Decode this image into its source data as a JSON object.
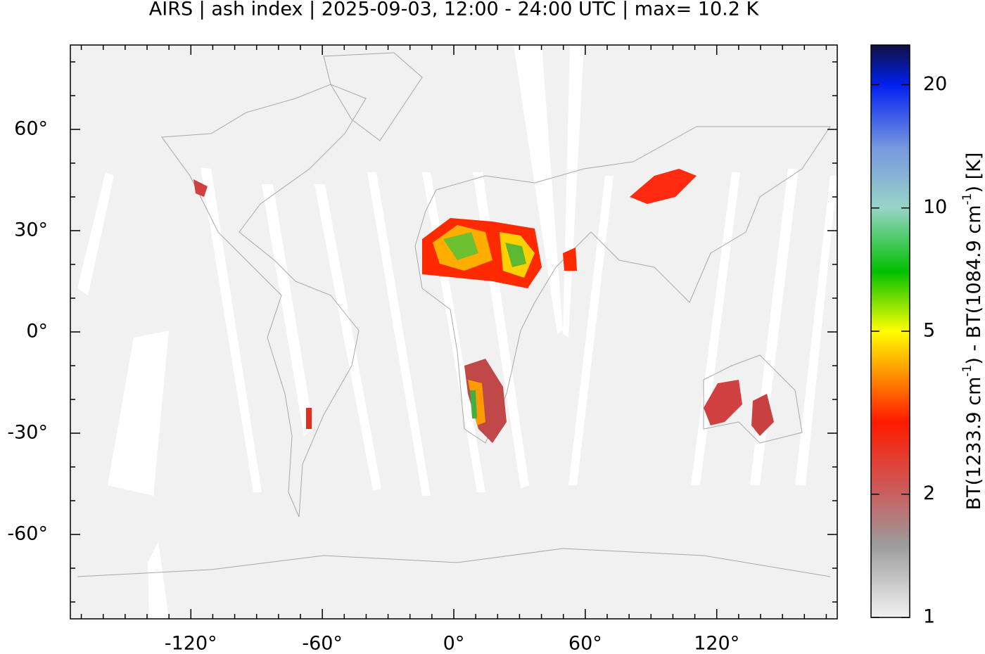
{
  "chart_data": {
    "type": "map",
    "title": "AIRS | ash index | 2025-09-03, 12:00 - 24:00 UTC | max= 10.2 K",
    "xlim": [
      -175,
      175
    ],
    "ylim": [
      -85,
      85
    ],
    "xticks": [
      {
        "value": -120,
        "label": "-120°"
      },
      {
        "value": -60,
        "label": "-60°"
      },
      {
        "value": 0,
        "label": "0°"
      },
      {
        "value": 60,
        "label": "60°"
      },
      {
        "value": 120,
        "label": "120°"
      }
    ],
    "yticks": [
      {
        "value": -60,
        "label": "-60°"
      },
      {
        "value": -30,
        "label": "-30°"
      },
      {
        "value": 0,
        "label": "0°"
      },
      {
        "value": 30,
        "label": "30°"
      },
      {
        "value": 60,
        "label": "60°"
      }
    ],
    "xminorticks": [
      -170,
      -160,
      -150,
      -140,
      -130,
      -110,
      -100,
      -90,
      -80,
      -70,
      -50,
      -40,
      -30,
      -20,
      -10,
      10,
      20,
      30,
      40,
      50,
      70,
      80,
      90,
      100,
      110,
      130,
      140,
      150,
      160,
      170
    ],
    "yminorticks": [
      -80,
      -70,
      -50,
      -40,
      -20,
      -10,
      10,
      20,
      40,
      50,
      70,
      80
    ],
    "colorbar": {
      "lim": [
        1,
        25
      ],
      "log": true,
      "ticks": [
        1,
        2,
        5,
        10,
        20
      ],
      "label": [
        "BT(1233.9 cm",
        "-1",
        ") - BT(1084.9 cm",
        "-1",
        ") [K]"
      ],
      "colormap": [
        {
          "value": 1,
          "color": "#f2f2f2"
        },
        {
          "value": 1.5,
          "color": "#9c9c9c"
        },
        {
          "value": 2,
          "color": "#c86060"
        },
        {
          "value": 3,
          "color": "#ff1a00"
        },
        {
          "value": 4,
          "color": "#ff9a00"
        },
        {
          "value": 5,
          "color": "#ffff00"
        },
        {
          "value": 7,
          "color": "#00c000"
        },
        {
          "value": 10,
          "color": "#98d4c8"
        },
        {
          "value": 14,
          "color": "#7898e0"
        },
        {
          "value": 20,
          "color": "#0020f0"
        },
        {
          "value": 25,
          "color": "#101040"
        }
      ]
    }
  }
}
